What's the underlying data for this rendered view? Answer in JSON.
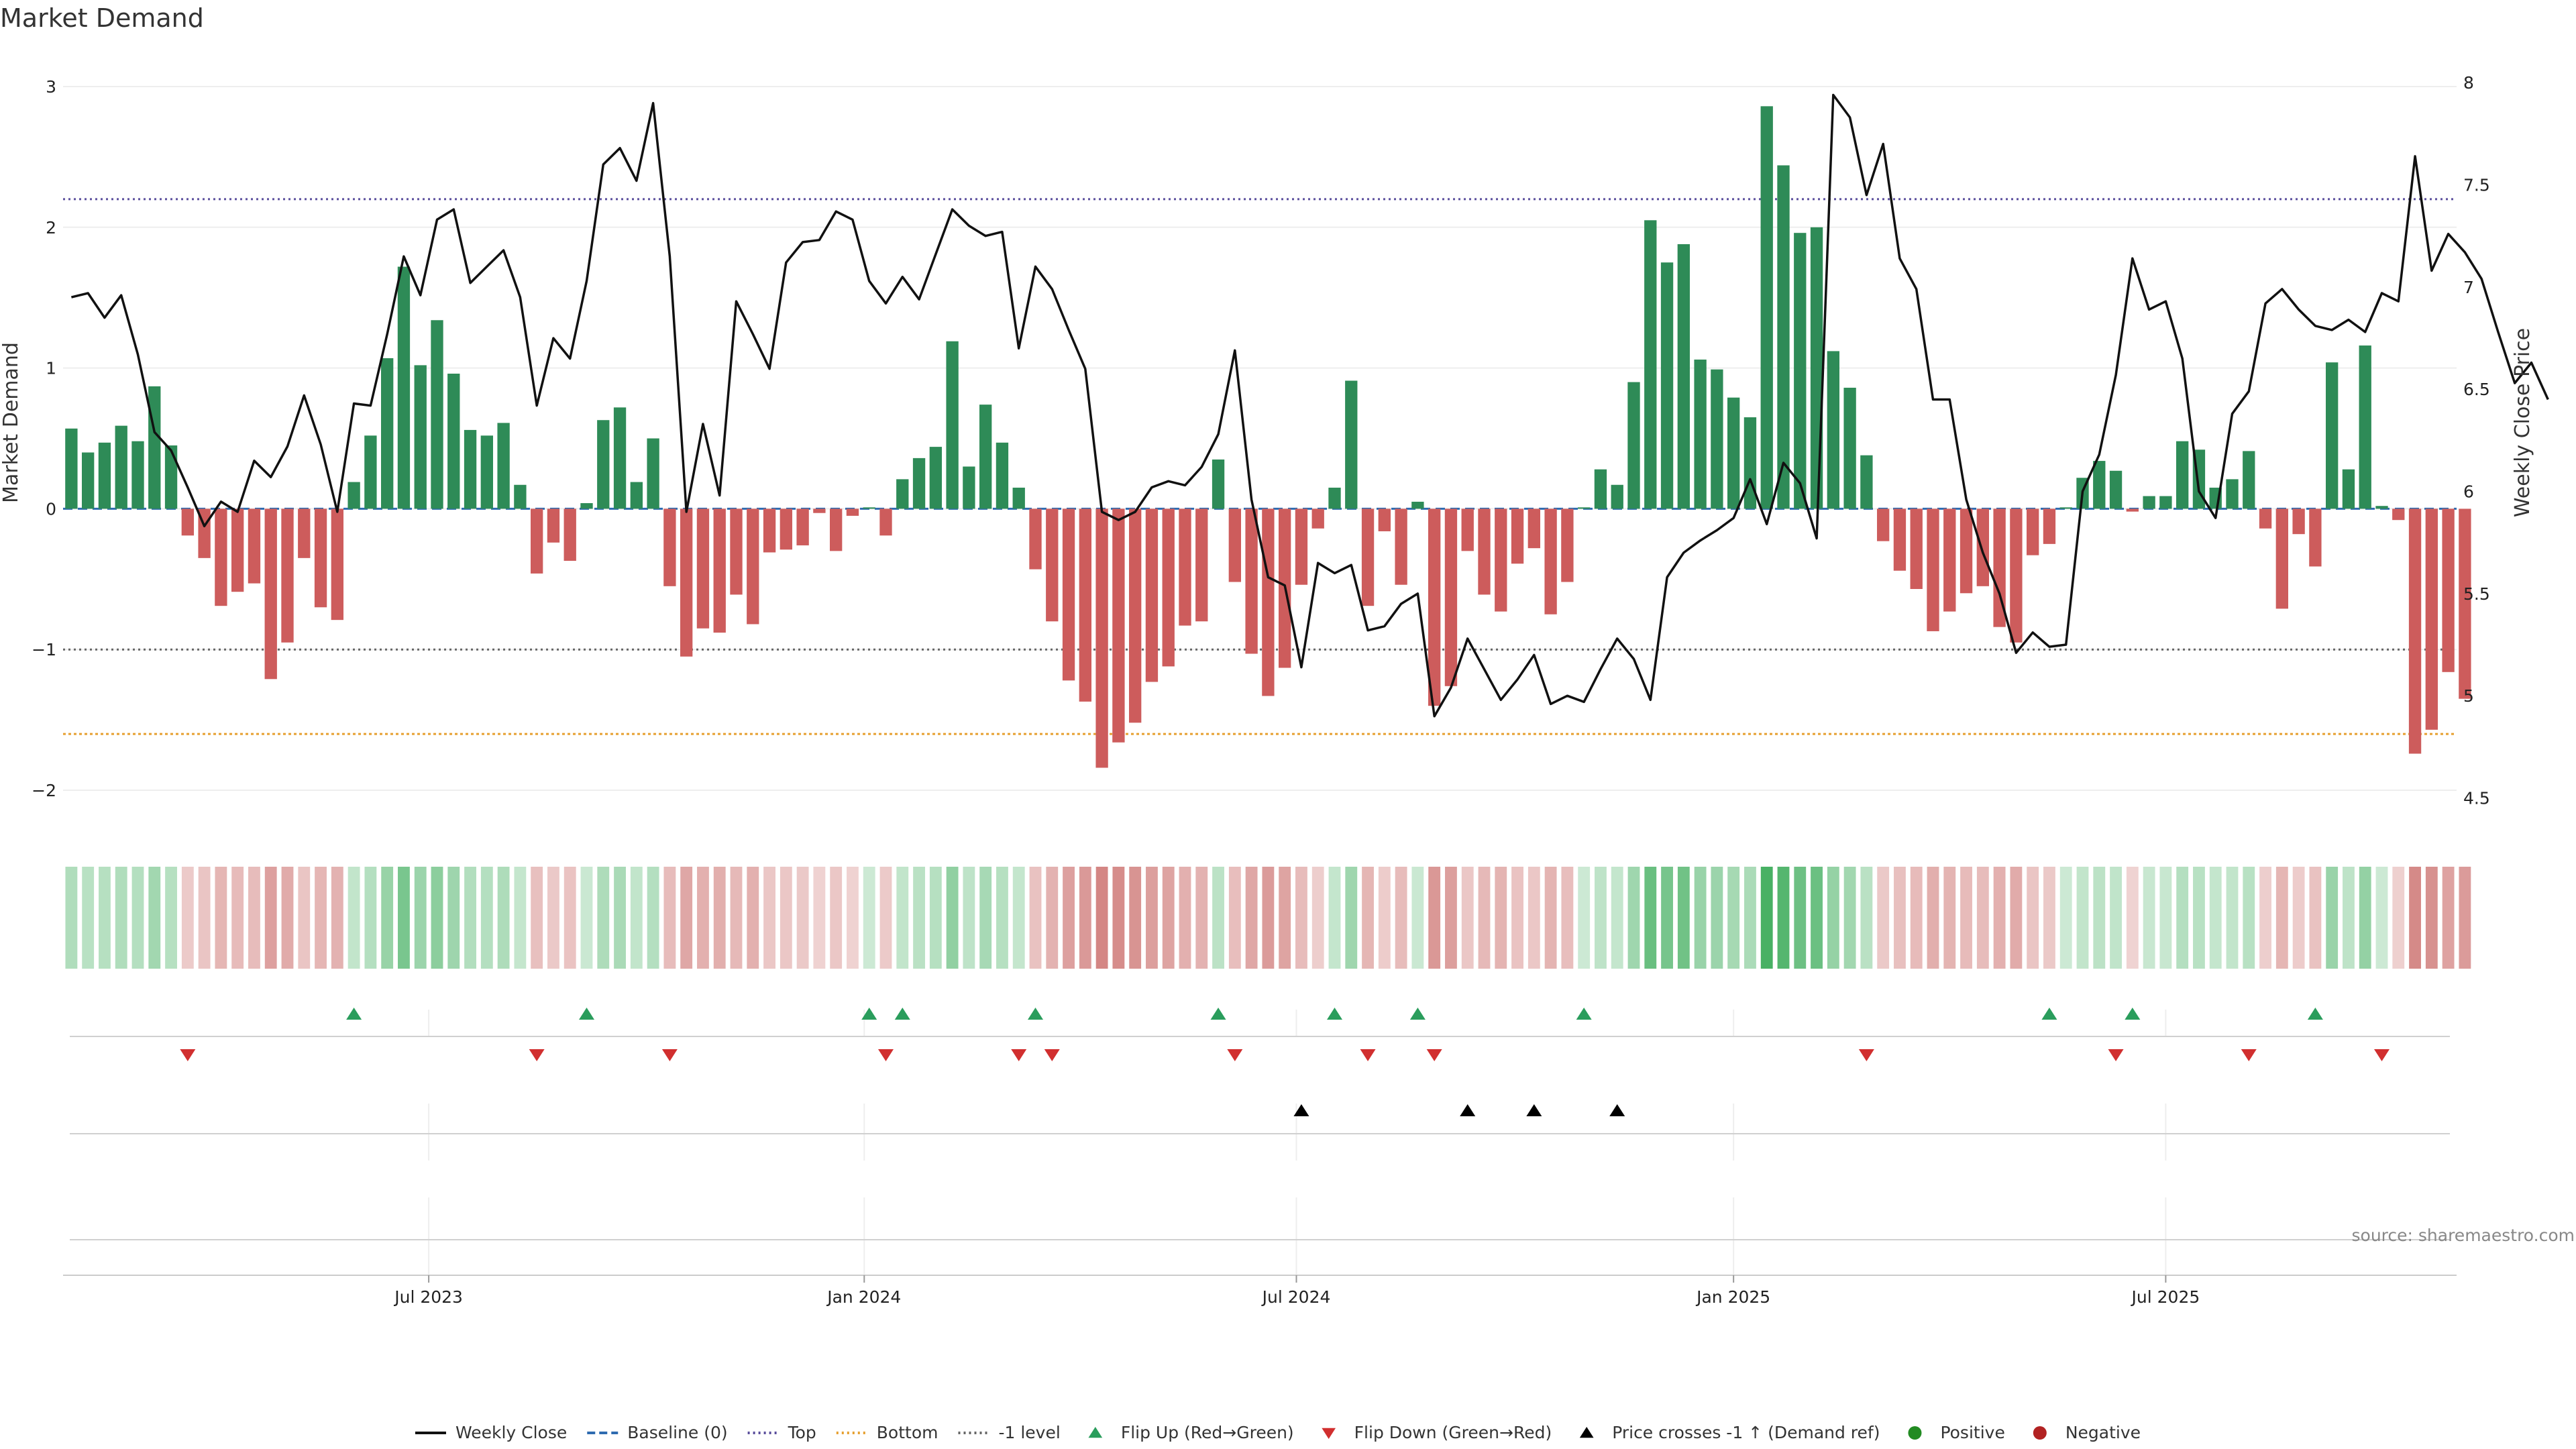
{
  "chart_data": {
    "type": "bar+line",
    "title": "Market Demand",
    "ylabel_left": "Market Demand",
    "ylabel_right": "Weekly Close Price",
    "ylim_left": [
      -2.2,
      3.1
    ],
    "ylim_right": [
      4.4,
      8.05
    ],
    "yticks_left": [
      {
        "value": 3,
        "label": "3"
      },
      {
        "value": 2,
        "label": "2"
      },
      {
        "value": 1,
        "label": "1"
      },
      {
        "value": 0,
        "label": "0"
      },
      {
        "value": -1,
        "label": "−1"
      },
      {
        "value": -2,
        "label": "−2"
      }
    ],
    "yticks_right": [
      {
        "value": 8,
        "label": "8"
      },
      {
        "value": 7.5,
        "label": "7.5"
      },
      {
        "value": 7,
        "label": "7"
      },
      {
        "value": 6.5,
        "label": "6.5"
      },
      {
        "value": 6,
        "label": "6"
      },
      {
        "value": 5.5,
        "label": "5.5"
      },
      {
        "value": 5,
        "label": "5"
      },
      {
        "value": 4.5,
        "label": "4.5"
      }
    ],
    "xticks": [
      {
        "week": 21.5,
        "label": "Jul 2023"
      },
      {
        "week": 47.7,
        "label": "Jan 2024"
      },
      {
        "week": 73.7,
        "label": "Jul 2024"
      },
      {
        "week": 100,
        "label": "Jan 2025"
      },
      {
        "week": 126,
        "label": "Jul 2025"
      }
    ],
    "n_weeks": 144,
    "reference_lines": {
      "top": 2.2,
      "bottom": -1.6,
      "minus_one": -1,
      "baseline": 0
    },
    "demand": [
      0.57,
      0.4,
      0.47,
      0.59,
      0.48,
      0.87,
      0.45,
      -0.19,
      -0.35,
      -0.69,
      -0.59,
      -0.53,
      -1.21,
      -0.95,
      -0.35,
      -0.7,
      -0.79,
      0.19,
      0.52,
      1.07,
      1.72,
      1.02,
      1.34,
      0.96,
      0.56,
      0.52,
      0.61,
      0.17,
      -0.46,
      -0.24,
      -0.37,
      0.04,
      0.63,
      0.72,
      0.19,
      0.5,
      -0.55,
      -1.05,
      -0.85,
      -0.88,
      -0.61,
      -0.82,
      -0.31,
      -0.29,
      -0.26,
      -0.03,
      -0.3,
      -0.05,
      0.01,
      -0.19,
      0.21,
      0.36,
      0.44,
      1.19,
      0.3,
      0.74,
      0.47,
      0.15,
      -0.43,
      -0.8,
      -1.22,
      -1.37,
      -1.84,
      -1.66,
      -1.52,
      -1.23,
      -1.12,
      -0.83,
      -0.8,
      0.35,
      -0.52,
      -1.03,
      -1.33,
      -1.13,
      -0.54,
      -0.14,
      0.15,
      0.91,
      -0.69,
      -0.16,
      -0.54,
      0.05,
      -1.4,
      -1.26,
      -0.3,
      -0.61,
      -0.73,
      -0.39,
      -0.28,
      -0.75,
      -0.52,
      0.01,
      0.28,
      0.17,
      0.9,
      2.05,
      1.75,
      1.88,
      1.06,
      0.99,
      0.79,
      0.65,
      2.86,
      2.44,
      1.96,
      2.0,
      1.12,
      0.86,
      0.38,
      -0.23,
      -0.44,
      -0.57,
      -0.87,
      -0.73,
      -0.6,
      -0.55,
      -0.84,
      -0.95,
      -0.33,
      -0.25,
      0.01,
      0.22,
      0.34,
      0.27,
      -0.02,
      0.09,
      0.09,
      0.48,
      0.42,
      0.15,
      0.21,
      0.41,
      -0.14,
      -0.71,
      -0.18,
      -0.41,
      1.04,
      0.28,
      1.16,
      0.02,
      -0.08,
      -1.74,
      -1.57,
      -1.16,
      -1.35
    ],
    "price": [
      6.95,
      6.97,
      6.85,
      6.96,
      6.67,
      6.29,
      6.2,
      6.02,
      5.83,
      5.95,
      5.9,
      6.15,
      6.07,
      6.22,
      6.47,
      6.23,
      5.9,
      6.43,
      6.42,
      6.77,
      7.15,
      6.96,
      7.33,
      7.38,
      7.02,
      7.1,
      7.18,
      6.95,
      6.42,
      6.75,
      6.65,
      7.03,
      7.6,
      7.68,
      7.52,
      7.9,
      7.15,
      5.9,
      6.33,
      5.98,
      6.93,
      6.77,
      6.6,
      7.12,
      7.22,
      7.23,
      7.37,
      7.33,
      7.03,
      6.92,
      7.05,
      6.94,
      7.16,
      7.38,
      7.3,
      7.25,
      7.27,
      6.7,
      7.1,
      6.99,
      6.79,
      6.6,
      5.9,
      5.86,
      5.9,
      6.02,
      6.05,
      6.03,
      6.12,
      6.28,
      6.69,
      5.96,
      5.58,
      5.54,
      5.14,
      5.65,
      5.6,
      5.64,
      5.32,
      5.34,
      5.45,
      5.5,
      4.9,
      5.04,
      5.28,
      5.13,
      4.98,
      5.08,
      5.2,
      4.96,
      5.0,
      4.97,
      5.13,
      5.28,
      5.18,
      4.98,
      5.58,
      5.7,
      5.76,
      5.81,
      5.87,
      6.06,
      5.84,
      6.14,
      6.04,
      5.77,
      7.94,
      7.83,
      7.45,
      7.7,
      7.14,
      6.99,
      6.45,
      6.45,
      5.96,
      5.7,
      5.5,
      5.21,
      5.31,
      5.24,
      5.25,
      6.0,
      6.18,
      6.57,
      7.14,
      6.89,
      6.93,
      6.65,
      6.0,
      5.87,
      6.38,
      6.49,
      6.92,
      6.99,
      6.89,
      6.81,
      6.79,
      6.84,
      6.78,
      6.97,
      6.93,
      7.64,
      7.08,
      7.26,
      7.17,
      7.04,
      6.78,
      6.53,
      6.63,
      6.45
    ],
    "flip_up_weeks": [
      17,
      31,
      48,
      50,
      58,
      69,
      76,
      81,
      91,
      119,
      124,
      135
    ],
    "flip_down_weeks": [
      7,
      28,
      36,
      49,
      57,
      59,
      70,
      78,
      82,
      108,
      123,
      131,
      139
    ],
    "price_cross_weeks": [
      74,
      84,
      88,
      93
    ],
    "legend": [
      {
        "label": "Weekly Close",
        "marker": "line-solid",
        "color": "#111111"
      },
      {
        "label": "Baseline (0)",
        "marker": "line-dashed",
        "color": "#2e6bb0"
      },
      {
        "label": "Top",
        "marker": "line-dotted",
        "color": "#5a4e9c"
      },
      {
        "label": "Bottom",
        "marker": "line-dotted",
        "color": "#e6a030"
      },
      {
        "label": "-1 level",
        "marker": "line-dotted",
        "color": "#666666"
      },
      {
        "label": "Flip Up (Red→Green)",
        "marker": "triangle-up",
        "color": "#2a9d5c"
      },
      {
        "label": "Flip Down (Green→Red)",
        "marker": "triangle-down",
        "color": "#d12f2f"
      },
      {
        "label": "Price crosses -1 ↑ (Demand ref)",
        "marker": "triangle-up",
        "color": "#000000"
      },
      {
        "label": "Positive",
        "marker": "circle",
        "color": "#228b22"
      },
      {
        "label": "Negative",
        "marker": "circle",
        "color": "#b22222"
      }
    ],
    "source": "source: sharemaestro.com"
  },
  "colors": {
    "positive_bar": "#2e8b57",
    "negative_bar": "#cd5c5c",
    "price_line": "#111111",
    "top_line": "#5a4e9c",
    "bottom_line": "#e6a030",
    "minus_one_line": "#666666",
    "baseline_line": "#2e6bb0",
    "flip_up": "#2a9d5c",
    "flip_down": "#d12f2f",
    "price_cross": "#000000",
    "heat_positive": "#34a853",
    "heat_negative": "#c0504d"
  }
}
